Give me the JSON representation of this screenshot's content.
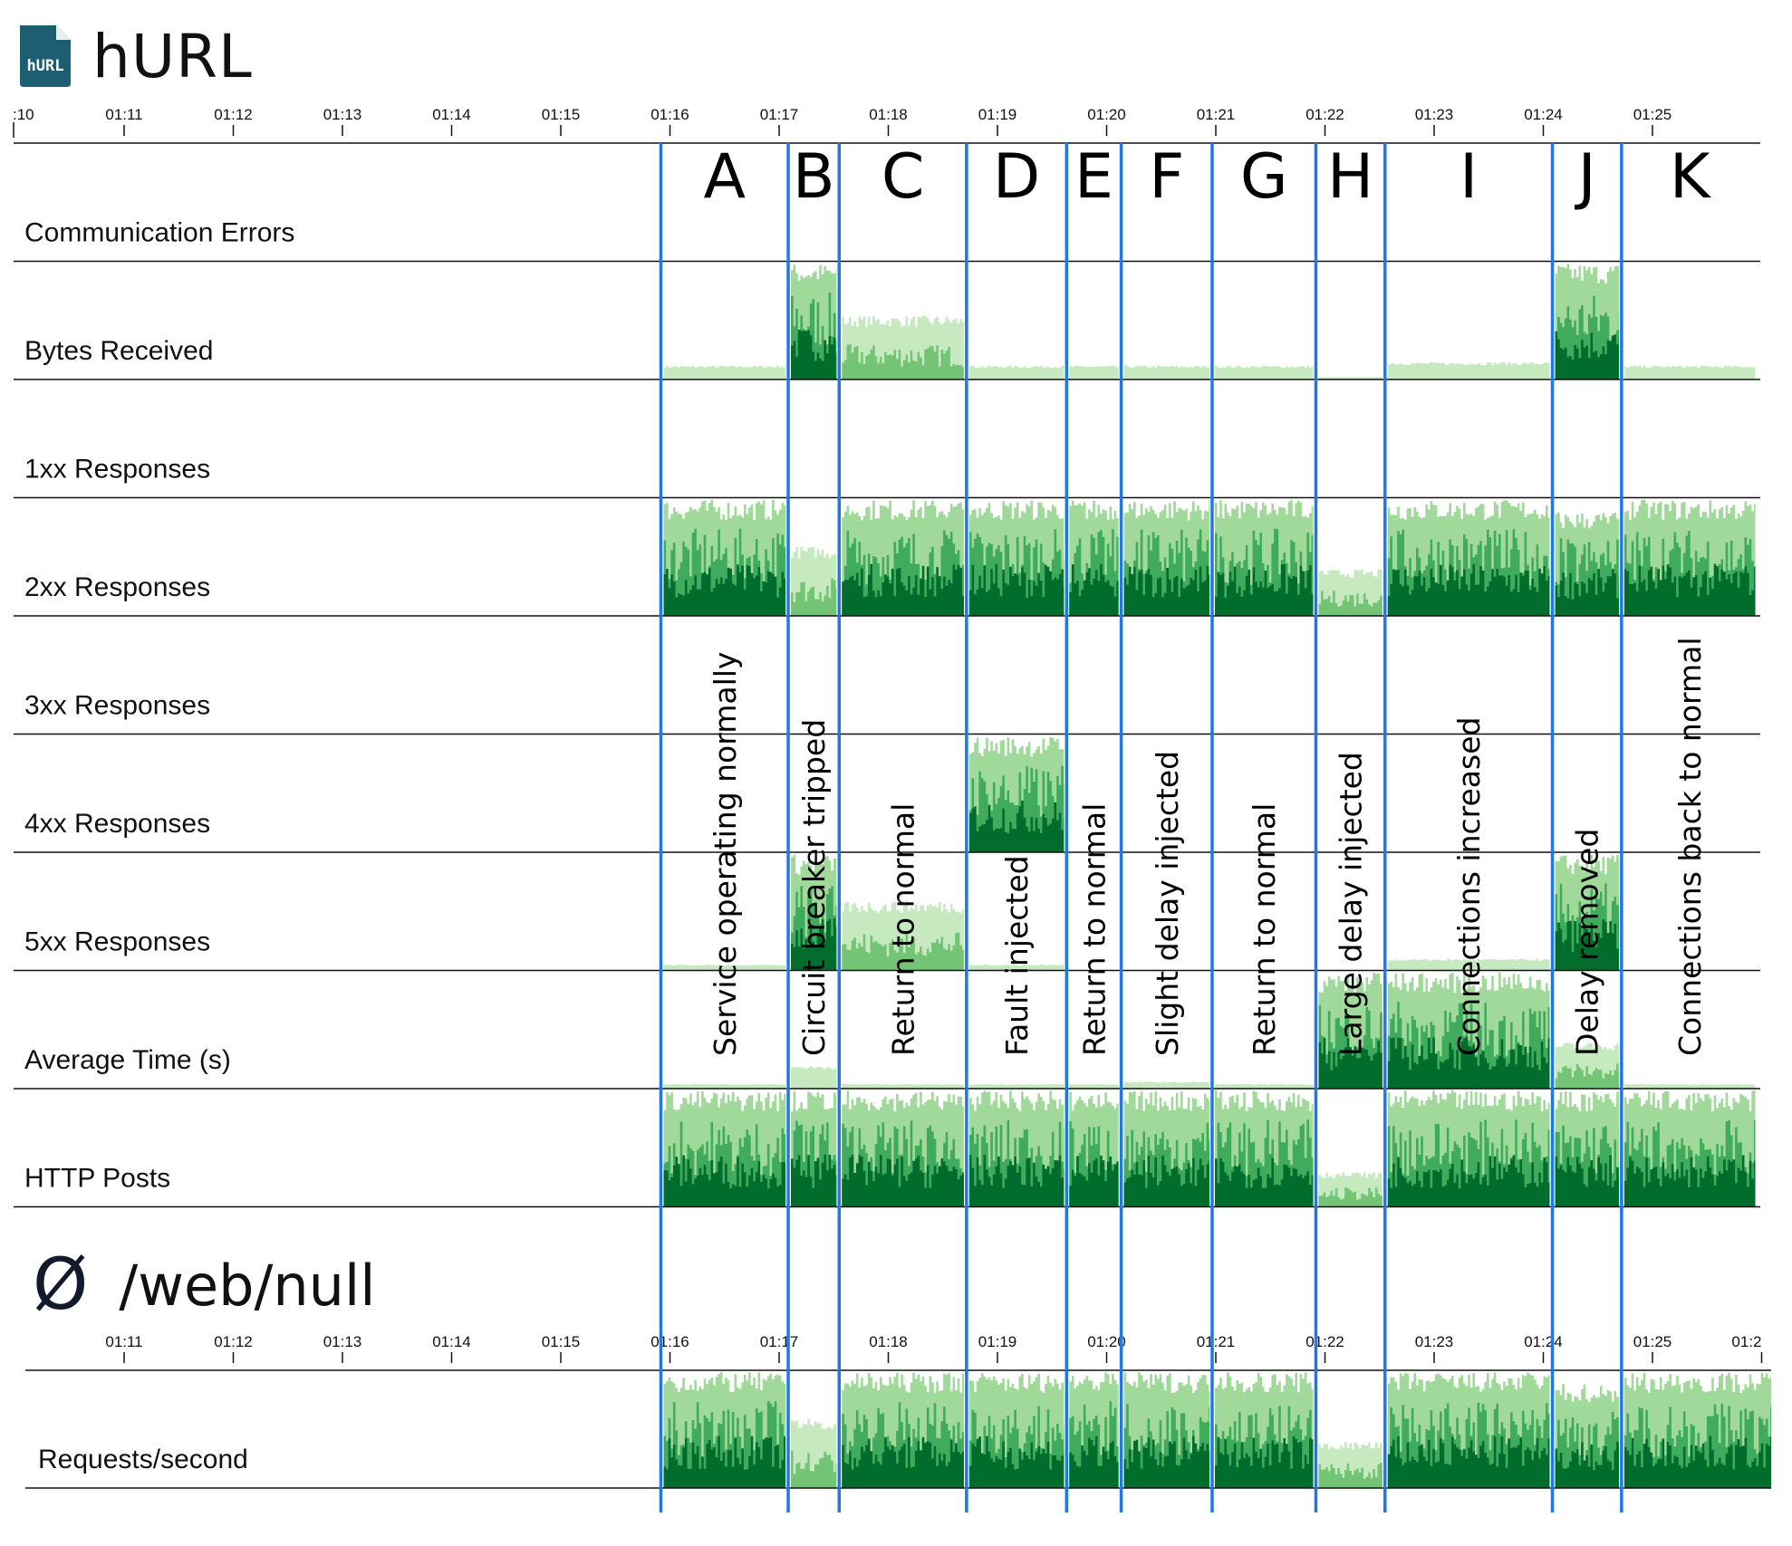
{
  "app": {
    "title": "hURL",
    "logo_text": "hURL"
  },
  "section": {
    "symbol": "Ø",
    "title": "/web/null"
  },
  "colors": {
    "darkest": "#006d2c",
    "dark": "#238b45",
    "mid": "#41ab5d",
    "light": "#74c476",
    "lighter": "#a1d99b",
    "lightest": "#c7e9c0",
    "divider": "#1f77e8",
    "logo_bg": "#1c5f73"
  },
  "chart_data": [
    {
      "type": "area",
      "title": "hURL",
      "x_unit": "time (hh:mm)",
      "top_axis_ticks": [
        ":10",
        "01:11",
        "01:12",
        "01:13",
        "01:14",
        "01:15",
        "01:16",
        "01:17",
        "01:18",
        "01:19",
        "01:20",
        "01:21",
        "01:22",
        "01:23",
        "01:24",
        "01:25"
      ],
      "rows": [
        "Communication Errors",
        "Bytes Received",
        "1xx Responses",
        "2xx Responses",
        "3xx Responses",
        "4xx Responses",
        "5xx Responses",
        "Average Time (s)",
        "HTTP Posts"
      ],
      "phases": [
        {
          "letter": "A",
          "label": "Service operating normally",
          "start": "01:15:55",
          "end": "01:17:05"
        },
        {
          "letter": "B",
          "label": "Circuit breaker tripped",
          "start": "01:17:05",
          "end": "01:17:33"
        },
        {
          "letter": "C",
          "label": "Return to normal",
          "start": "01:17:33",
          "end": "01:18:43"
        },
        {
          "letter": "D",
          "label": "Fault injected",
          "start": "01:18:43",
          "end": "01:19:38"
        },
        {
          "letter": "E",
          "label": "Return to normal",
          "start": "01:19:38",
          "end": "01:20:08"
        },
        {
          "letter": "F",
          "label": "Slight delay injected",
          "start": "01:20:08",
          "end": "01:20:58"
        },
        {
          "letter": "G",
          "label": "Return to normal",
          "start": "01:20:58",
          "end": "01:21:55"
        },
        {
          "letter": "H",
          "label": "Large delay injected",
          "start": "01:21:55",
          "end": "01:22:33"
        },
        {
          "letter": "I",
          "label": "Connections increased",
          "start": "01:22:33",
          "end": "01:24:05"
        },
        {
          "letter": "J",
          "label": "Delay removed",
          "start": "01:24:05",
          "end": "01:24:43"
        },
        {
          "letter": "K",
          "label": "Connections back to normal",
          "start": "01:24:43",
          "end": "01:25:58"
        }
      ],
      "levels": {
        "Communication Errors": [
          0,
          0,
          0,
          0,
          0,
          0,
          0,
          0,
          0,
          0,
          0
        ],
        "Bytes Received": [
          0.12,
          1.0,
          0.55,
          0.12,
          0.12,
          0.12,
          0.12,
          0.02,
          0.15,
          1.0,
          0.12
        ],
        "1xx Responses": [
          0,
          0,
          0,
          0,
          0,
          0,
          0,
          0,
          0,
          0,
          0
        ],
        "2xx Responses": [
          1.0,
          0.6,
          1.0,
          1.0,
          1.0,
          1.0,
          1.0,
          0.4,
          1.0,
          0.9,
          1.0
        ],
        "3xx Responses": [
          0,
          0,
          0,
          0,
          0,
          0,
          0,
          0,
          0,
          0,
          0
        ],
        "4xx Responses": [
          0,
          0,
          0,
          1.0,
          0,
          0,
          0,
          0,
          0,
          0,
          0
        ],
        "5xx Responses": [
          0.05,
          1.0,
          0.6,
          0.05,
          0,
          0,
          0,
          0,
          0.1,
          1.0,
          0
        ],
        "Average Time (s)": [
          0.04,
          0.2,
          0.04,
          0.04,
          0.04,
          0.06,
          0.04,
          1.0,
          1.0,
          0.4,
          0.04
        ],
        "HTTP Posts": [
          1.0,
          1.0,
          1.0,
          1.0,
          1.0,
          1.0,
          1.0,
          0.3,
          1.0,
          1.0,
          1.0
        ]
      }
    },
    {
      "type": "area",
      "title": "/web/null",
      "x_unit": "time (hh:mm)",
      "axis_ticks": [
        "01:11",
        "01:12",
        "01:13",
        "01:14",
        "01:15",
        "01:16",
        "01:17",
        "01:18",
        "01:19",
        "01:20",
        "01:21",
        "01:22",
        "01:23",
        "01:24",
        "01:25",
        "01:2"
      ],
      "rows": [
        "Requests/second"
      ],
      "levels": {
        "Requests/second": [
          1.0,
          0.6,
          1.0,
          1.0,
          1.0,
          1.0,
          1.0,
          0.4,
          1.0,
          0.9,
          1.0
        ]
      }
    }
  ]
}
